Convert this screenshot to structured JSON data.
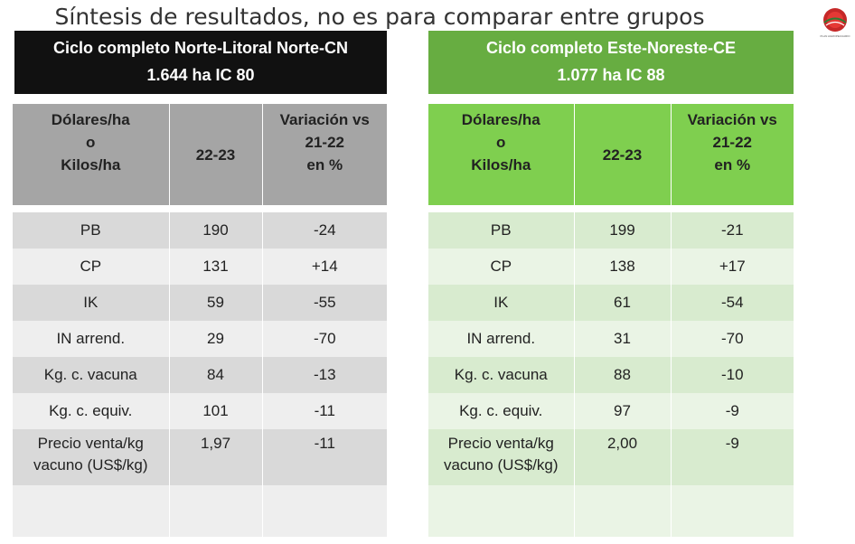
{
  "title": "Síntesis de resultados, no es para comparar entre grupos",
  "logo": {
    "icon": "plan-agropecuario-logo",
    "text": "PLAN AGROPECUARIO"
  },
  "groups": [
    {
      "header_line1": "Ciclo completo Norte-Litoral Norte-CN",
      "header_line2": "1.644  ha IC 80",
      "header_color": "#111111",
      "col_headers": {
        "label_l1": "Dólares/ha",
        "label_l2": "o",
        "label_l3": "Kilos/ha",
        "period": "22-23",
        "var_l1": "Variación vs",
        "var_l2": "21-22",
        "var_l3": "en %"
      },
      "rows": [
        {
          "label": "PB",
          "value": "190",
          "variation": "-24"
        },
        {
          "label": "CP",
          "value": "131",
          "variation": "+14"
        },
        {
          "label": "IK",
          "value": "59",
          "variation": "-55"
        },
        {
          "label": "IN arrend.",
          "value": "29",
          "variation": "-70"
        },
        {
          "label": "Kg. c. vacuna",
          "value": "84",
          "variation": "-13"
        },
        {
          "label": "Kg. c. equiv.",
          "value": "101",
          "variation": "-11"
        }
      ],
      "price_row": {
        "label_l1": "Precio venta/kg",
        "label_l2": "vacuno (US$/kg)",
        "value": "1,97",
        "variation": "-11"
      }
    },
    {
      "header_line1": "Ciclo completo Este-Noreste-CE",
      "header_line2": "1.077  ha IC 88",
      "header_color": "#67ad41",
      "col_headers": {
        "label_l1": "Dólares/ha",
        "label_l2": "o",
        "label_l3": "Kilos/ha",
        "period": "22-23",
        "var_l1": "Variación vs",
        "var_l2": "21-22",
        "var_l3": "en %"
      },
      "rows": [
        {
          "label": "PB",
          "value": "199",
          "variation": "-21"
        },
        {
          "label": "CP",
          "value": "138",
          "variation": "+17"
        },
        {
          "label": "IK",
          "value": "61",
          "variation": "-54"
        },
        {
          "label": "IN arrend.",
          "value": "31",
          "variation": "-70"
        },
        {
          "label": "Kg. c. vacuna",
          "value": "88",
          "variation": "-10"
        },
        {
          "label": "Kg. c. equiv.",
          "value": "97",
          "variation": "-9"
        }
      ],
      "price_row": {
        "label_l1": "Precio venta/kg",
        "label_l2": "vacuno (US$/kg)",
        "value": "2,00",
        "variation": "-9"
      }
    }
  ]
}
